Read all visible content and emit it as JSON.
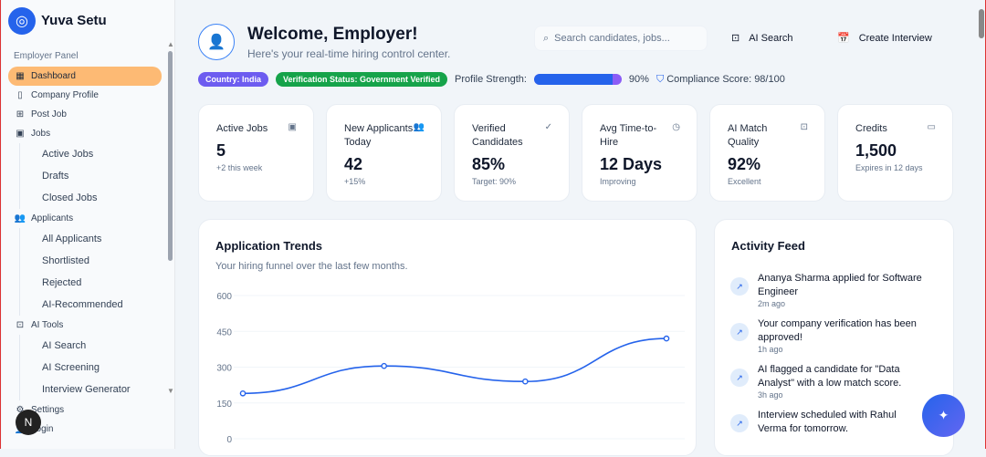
{
  "brand": {
    "name": "Yuva Setu"
  },
  "sidebar": {
    "section": "Employer Panel",
    "items": [
      {
        "label": "Dashboard",
        "icon": "grid-icon"
      },
      {
        "label": "Company Profile",
        "icon": "building-icon"
      },
      {
        "label": "Post Job",
        "icon": "file-plus-icon"
      },
      {
        "label": "Jobs",
        "icon": "briefcase-icon",
        "children": [
          "Active Jobs",
          "Drafts",
          "Closed Jobs"
        ]
      },
      {
        "label": "Applicants",
        "icon": "users-icon",
        "children": [
          "All Applicants",
          "Shortlisted",
          "Rejected",
          "AI-Recommended"
        ]
      },
      {
        "label": "AI Tools",
        "icon": "bot-icon",
        "children": [
          "AI Search",
          "AI Screening",
          "Interview Generator"
        ]
      },
      {
        "label": "Settings",
        "icon": "gear-icon"
      },
      {
        "label": "Login",
        "icon": "user-icon"
      }
    ],
    "badge": "N"
  },
  "header": {
    "title": "Welcome, Employer!",
    "subtitle": "Here's your real-time hiring control center.",
    "search_placeholder": "Search candidates, jobs...",
    "ai_search": "AI Search",
    "create_interview": "Create Interview"
  },
  "status": {
    "country": "Country: India",
    "verification": "Verification Status: Government Verified",
    "profile_label": "Profile Strength:",
    "profile_value": "90%",
    "profile_fraction": 0.9,
    "compliance": "Compliance Score: 98/100",
    "colors": {
      "country": "#6d5cf0",
      "verification": "#16a34a"
    }
  },
  "cards": [
    {
      "label": "Active Jobs",
      "value": "5",
      "note": "+2 this week",
      "icon": "briefcase-icon"
    },
    {
      "label": "New Applicants Today",
      "value": "42",
      "note": "+15%",
      "icon": "users-icon"
    },
    {
      "label": "Verified Candidates",
      "value": "85%",
      "note": "Target: 90%",
      "icon": "check-circle-icon"
    },
    {
      "label": "Avg Time-to-Hire",
      "value": "12 Days",
      "note": "Improving",
      "icon": "clock-icon"
    },
    {
      "label": "AI Match Quality",
      "value": "92%",
      "note": "Excellent",
      "icon": "bot-icon"
    },
    {
      "label": "Credits",
      "value": "1,500",
      "note": "Expires in 12 days",
      "icon": "credit-card-icon"
    }
  ],
  "trends": {
    "title": "Application Trends",
    "subtitle": "Your hiring funnel over the last few months."
  },
  "chart_data": {
    "type": "line",
    "title": "Application Trends",
    "yticks": [
      "0",
      "150",
      "300",
      "450",
      "600"
    ],
    "ylim": [
      0,
      600
    ],
    "values": [
      190,
      305,
      240,
      420
    ],
    "color": "#2563eb",
    "grid": true
  },
  "feed": {
    "title": "Activity Feed",
    "items": [
      {
        "text": "Ananya Sharma applied for Software Engineer",
        "time": "2m ago"
      },
      {
        "text": "Your company verification has been approved!",
        "time": "1h ago"
      },
      {
        "text": "AI flagged a candidate for \"Data Analyst\" with a low match score.",
        "time": "3h ago"
      },
      {
        "text": "Interview scheduled with Rahul Verma for tomorrow.",
        "time": ""
      }
    ]
  }
}
